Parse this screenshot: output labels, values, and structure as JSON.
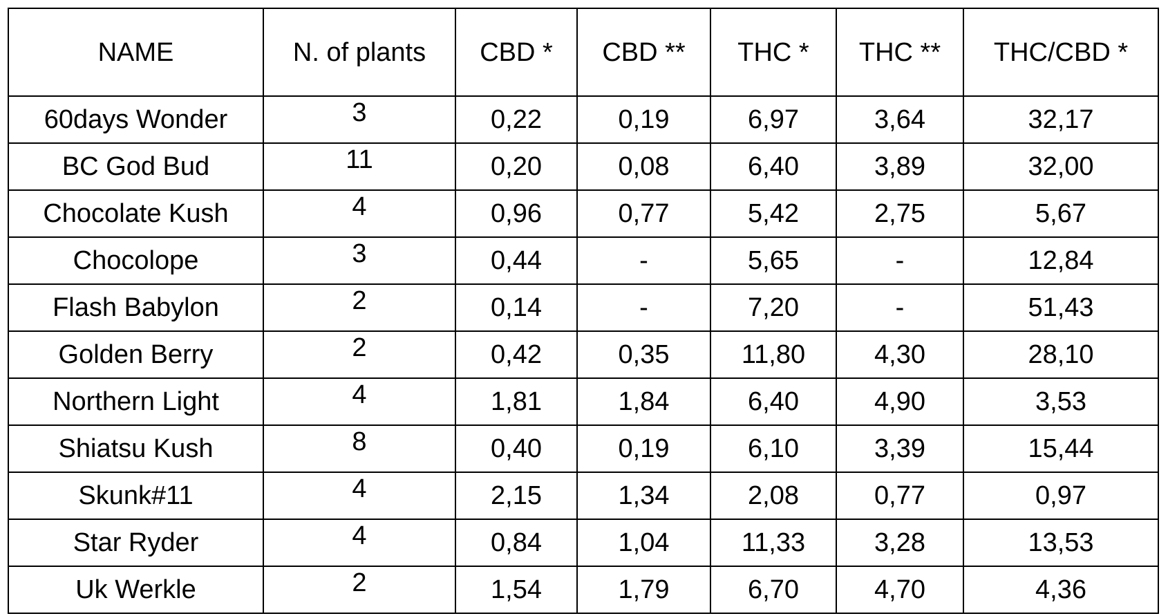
{
  "table": {
    "headers": [
      "NAME",
      "N. of plants",
      "CBD *",
      "CBD **",
      "THC *",
      "THC **",
      "THC/CBD *"
    ],
    "rows": [
      [
        "60days Wonder",
        "3",
        "0,22",
        "0,19",
        "6,97",
        "3,64",
        "32,17"
      ],
      [
        "BC God Bud",
        "11",
        "0,20",
        "0,08",
        "6,40",
        "3,89",
        "32,00"
      ],
      [
        "Chocolate Kush",
        "4",
        "0,96",
        "0,77",
        "5,42",
        "2,75",
        "5,67"
      ],
      [
        "Chocolope",
        "3",
        "0,44",
        "-",
        "5,65",
        "-",
        "12,84"
      ],
      [
        "Flash Babylon",
        "2",
        "0,14",
        "-",
        "7,20",
        "-",
        "51,43"
      ],
      [
        "Golden Berry",
        "2",
        "0,42",
        "0,35",
        "11,80",
        "4,30",
        "28,10"
      ],
      [
        "Northern Light",
        "4",
        "1,81",
        "1,84",
        "6,40",
        "4,90",
        "3,53"
      ],
      [
        "Shiatsu Kush",
        "8",
        "0,40",
        "0,19",
        "6,10",
        "3,39",
        "15,44"
      ],
      [
        "Skunk#11",
        "4",
        "2,15",
        "1,34",
        "2,08",
        "0,77",
        "0,97"
      ],
      [
        "Star Ryder",
        "4",
        "0,84",
        "1,04",
        "11,33",
        "3,28",
        "13,53"
      ],
      [
        "Uk Werkle",
        "2",
        "1,54",
        "1,79",
        "6,70",
        "4,70",
        "4,36"
      ]
    ]
  }
}
